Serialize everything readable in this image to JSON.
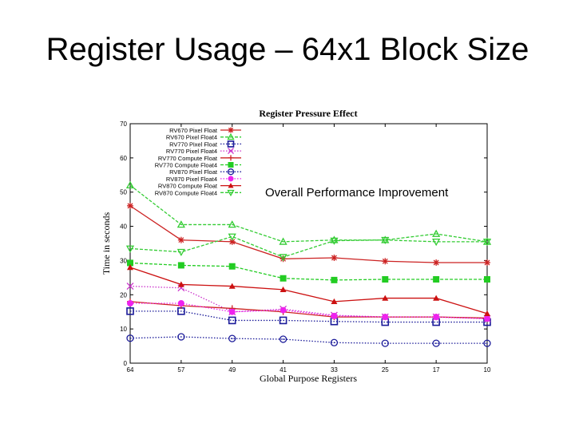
{
  "slide": {
    "title": "Register Usage – 64x1 Block Size"
  },
  "chart_data": {
    "type": "line",
    "title": "Register Pressure Effect",
    "xlabel": "Global Purpose Registers",
    "ylabel": "Time in seconds",
    "categories": [
      "64",
      "57",
      "49",
      "41",
      "33",
      "25",
      "17",
      "10"
    ],
    "ylim": [
      0,
      70
    ],
    "yticks": [
      0,
      10,
      20,
      30,
      40,
      50,
      60,
      70
    ],
    "grid": false,
    "legend_position": "top-left",
    "annotation": "Overall Performance Improvement",
    "series": [
      {
        "name": "RV670 Pixel Float",
        "color": "#cc2222",
        "marker": "asterisk",
        "dash": "solid",
        "values": [
          46,
          36,
          35.5,
          30.5,
          30.8,
          29.8,
          29.4,
          29.4
        ]
      },
      {
        "name": "RV670 Pixel Float4",
        "color": "#33cc33",
        "marker": "triangle-up-open",
        "dash": "dashed",
        "values": [
          52,
          40.5,
          40.5,
          35.5,
          36,
          36,
          37.8,
          35.5
        ]
      },
      {
        "name": "RV770 Pixel Float",
        "color": "#1a1a99",
        "marker": "square-open",
        "dash": "dotted",
        "values": [
          15.2,
          15.2,
          12.5,
          12.5,
          12.2,
          12,
          12,
          12
        ]
      },
      {
        "name": "RV770 Pixel Float4",
        "color": "#cc33cc",
        "marker": "x",
        "dash": "dotted",
        "values": [
          22.5,
          22,
          15,
          15.8,
          14,
          13.5,
          13.5,
          13
        ]
      },
      {
        "name": "RV770 Compute Float",
        "color": "#cc2222",
        "marker": "plus",
        "dash": "solid",
        "values": [
          18,
          16.8,
          16,
          15,
          13.5,
          13.5,
          13.5,
          13.2
        ]
      },
      {
        "name": "RV770 Compute Float4",
        "color": "#22cc22",
        "marker": "square-filled",
        "dash": "dashed",
        "values": [
          29.3,
          28.6,
          28.3,
          24.8,
          24.3,
          24.5,
          24.5,
          24.5
        ]
      },
      {
        "name": "RV870 Pixel Float",
        "color": "#1a1a99",
        "marker": "circle-open",
        "dash": "dotted",
        "values": [
          7.3,
          7.7,
          7.2,
          7,
          6,
          5.8,
          5.8,
          5.8
        ]
      },
      {
        "name": "RV870 Pixel Float4",
        "color": "#ee22ee",
        "marker": "circle-filled",
        "dash": "dotted",
        "values": [
          17.5,
          17.5,
          15,
          15.5,
          13.8,
          13.5,
          13.5,
          13
        ]
      },
      {
        "name": "RV870 Compute Float",
        "color": "#cc1111",
        "marker": "triangle-up-filled",
        "dash": "solid",
        "values": [
          28,
          23,
          22.5,
          21.5,
          18,
          19,
          19,
          14.5
        ]
      },
      {
        "name": "RV870 Compute Float4",
        "color": "#33cc33",
        "marker": "triangle-down-open",
        "dash": "dashed",
        "values": [
          33.5,
          32.5,
          37,
          31,
          35.8,
          36,
          35.5,
          35.5
        ]
      }
    ]
  }
}
